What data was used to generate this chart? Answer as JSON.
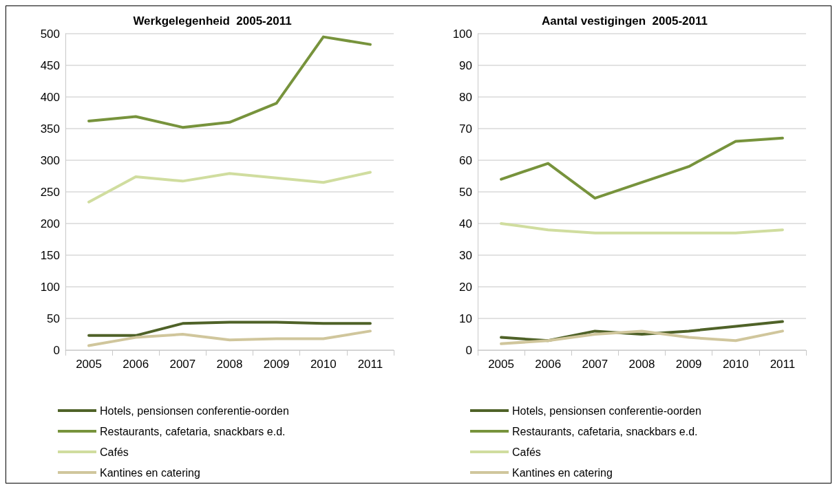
{
  "chart_data": [
    {
      "type": "line",
      "title": "Werkgelegenheid  2005-2011",
      "categories": [
        "2005",
        "2006",
        "2007",
        "2008",
        "2009",
        "2010",
        "2011"
      ],
      "ylim": [
        0,
        500
      ],
      "yticks": [
        0,
        50,
        100,
        150,
        200,
        250,
        300,
        350,
        400,
        450,
        500
      ],
      "grid": "y",
      "legend": "bottom",
      "marker": "none",
      "line_style": "solid",
      "series": [
        {
          "name": "Hotels, pensionsen conferentie-oorden",
          "color": "#4f6228",
          "values": [
            23,
            23,
            42,
            44,
            44,
            42,
            42
          ]
        },
        {
          "name": "Restaurants, cafetaria, snackbars e.d.",
          "color": "#77933c",
          "values": [
            362,
            369,
            352,
            360,
            390,
            495,
            483
          ]
        },
        {
          "name": "Cafés",
          "color": "#d0dd9f",
          "values": [
            234,
            274,
            267,
            279,
            272,
            265,
            281
          ]
        },
        {
          "name": "Kantines en catering",
          "color": "#d0c69c",
          "values": [
            7,
            20,
            25,
            16,
            18,
            18,
            30
          ]
        }
      ]
    },
    {
      "type": "line",
      "title": "Aantal vestigingen  2005-2011",
      "categories": [
        "2005",
        "2006",
        "2007",
        "2008",
        "2009",
        "2010",
        "2011"
      ],
      "ylim": [
        0,
        100
      ],
      "yticks": [
        0,
        10,
        20,
        30,
        40,
        50,
        60,
        70,
        80,
        90,
        100
      ],
      "grid": "y",
      "legend": "bottom",
      "marker": "none",
      "line_style": "solid",
      "series": [
        {
          "name": "Hotels, pensionsen conferentie-oorden",
          "color": "#4f6228",
          "values": [
            4,
            3,
            6,
            5,
            6,
            7.5,
            9
          ]
        },
        {
          "name": "Restaurants, cafetaria, snackbars e.d.",
          "color": "#77933c",
          "values": [
            54,
            59,
            48,
            53,
            58,
            66,
            67
          ]
        },
        {
          "name": "Cafés",
          "color": "#d0dd9f",
          "values": [
            40,
            38,
            37,
            37,
            37,
            37,
            38
          ]
        },
        {
          "name": "Kantines en catering",
          "color": "#d0c69c",
          "values": [
            2,
            3,
            5,
            6,
            4,
            3,
            6
          ]
        }
      ]
    }
  ]
}
